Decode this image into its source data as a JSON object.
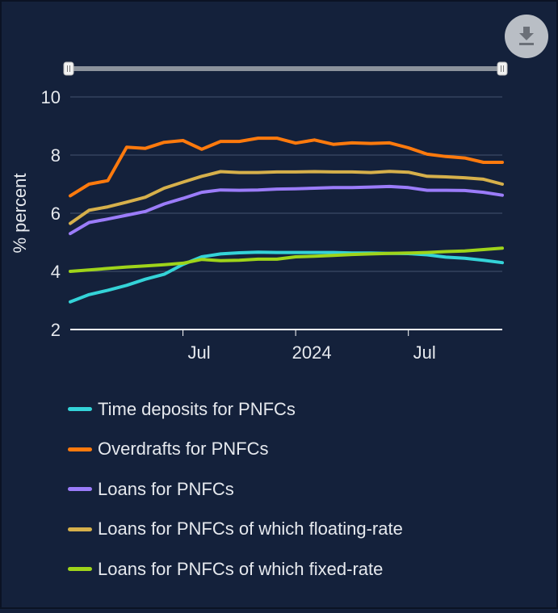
{
  "colors": {
    "background": "#14213b",
    "grid": "#44546f",
    "axis": "#ffffff",
    "text": "#e6e9ee",
    "slider_track": "#8c939c",
    "download_button": "#b9bec5"
  },
  "download_button": {
    "icon": "download-icon"
  },
  "chart_data": {
    "type": "line",
    "title": "",
    "xlabel": "",
    "ylabel": "% percent",
    "ylim": [
      2,
      10
    ],
    "yticks": [
      2,
      4,
      6,
      8,
      10
    ],
    "y_tick_labels": [
      "2",
      "4",
      "6",
      "8",
      "10"
    ],
    "x_tick_labels": [
      "Jul",
      "2024",
      "Jul"
    ],
    "x_tick_dates": [
      "2023-07",
      "2024-01",
      "2024-07"
    ],
    "grid": true,
    "legend_position": "bottom",
    "x": [
      "2023-01",
      "2023-02",
      "2023-03",
      "2023-04",
      "2023-05",
      "2023-06",
      "2023-07",
      "2023-08",
      "2023-09",
      "2023-10",
      "2023-11",
      "2023-12",
      "2024-01",
      "2024-02",
      "2024-03",
      "2024-04",
      "2024-05",
      "2024-06",
      "2024-07",
      "2024-08",
      "2024-09",
      "2024-10",
      "2024-11",
      "2024-12"
    ],
    "series": [
      {
        "name": "Time deposits for PNFCs",
        "color": "#34d3d8",
        "values": [
          2.95,
          3.2,
          3.35,
          3.52,
          3.73,
          3.9,
          4.24,
          4.5,
          4.6,
          4.64,
          4.66,
          4.65,
          4.65,
          4.65,
          4.65,
          4.63,
          4.63,
          4.62,
          4.61,
          4.57,
          4.49,
          4.45,
          4.38,
          4.3
        ]
      },
      {
        "name": "Overdrafts for PNFCs",
        "color": "#ff7a0d",
        "values": [
          6.6,
          7.0,
          7.12,
          8.27,
          8.23,
          8.44,
          8.5,
          8.2,
          8.47,
          8.47,
          8.58,
          8.58,
          8.41,
          8.52,
          8.37,
          8.42,
          8.4,
          8.42,
          8.25,
          8.03,
          7.95,
          7.9,
          7.75,
          7.75
        ]
      },
      {
        "name": "Loans for PNFCs",
        "color": "#9b7cf9",
        "values": [
          5.3,
          5.68,
          5.8,
          5.93,
          6.06,
          6.32,
          6.51,
          6.72,
          6.8,
          6.79,
          6.8,
          6.83,
          6.84,
          6.86,
          6.88,
          6.88,
          6.9,
          6.92,
          6.88,
          6.79,
          6.79,
          6.78,
          6.72,
          6.62
        ]
      },
      {
        "name": "Loans for PNFCs of which floating-rate",
        "color": "#d6b04b",
        "values": [
          5.65,
          6.1,
          6.22,
          6.38,
          6.55,
          6.86,
          7.07,
          7.27,
          7.43,
          7.4,
          7.4,
          7.42,
          7.42,
          7.43,
          7.42,
          7.42,
          7.4,
          7.44,
          7.41,
          7.27,
          7.25,
          7.22,
          7.17,
          7.0
        ]
      },
      {
        "name": "Loans for PNFCs of which fixed-rate",
        "color": "#9fd41a",
        "values": [
          4.0,
          4.05,
          4.1,
          4.15,
          4.19,
          4.23,
          4.28,
          4.41,
          4.37,
          4.38,
          4.42,
          4.42,
          4.5,
          4.52,
          4.55,
          4.58,
          4.6,
          4.62,
          4.63,
          4.65,
          4.68,
          4.7,
          4.75,
          4.8
        ]
      }
    ]
  }
}
